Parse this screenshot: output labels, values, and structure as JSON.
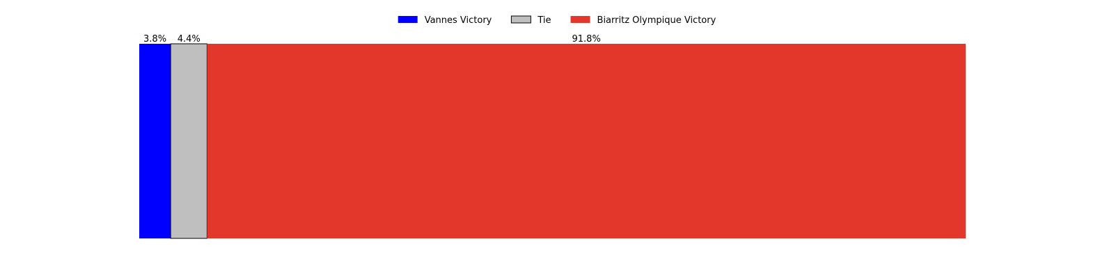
{
  "chart_data": {
    "type": "bar",
    "orientation": "horizontal-stacked",
    "categories": [
      ""
    ],
    "series": [
      {
        "name": "Vannes Victory",
        "values": [
          3.8
        ],
        "color": "#0000ff",
        "label": "3.8%"
      },
      {
        "name": "Tie",
        "values": [
          4.4
        ],
        "color": "#bfbfbf",
        "edge_color": "#000000",
        "label": "4.4%"
      },
      {
        "name": "Biarritz Olympique Victory",
        "values": [
          91.8
        ],
        "color": "#e3372b",
        "label": "91.8%"
      }
    ],
    "xlim": [
      0,
      100
    ],
    "grid": false,
    "legend": "top-center",
    "axes_visible": false
  }
}
